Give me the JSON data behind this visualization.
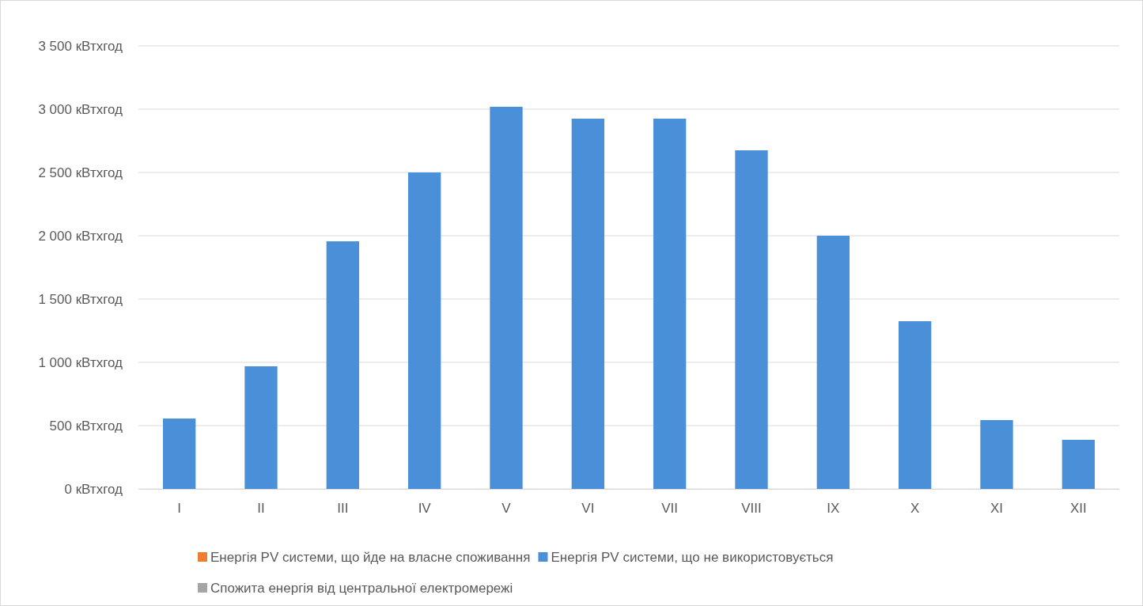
{
  "chart_data": {
    "type": "bar",
    "categories": [
      "I",
      "II",
      "III",
      "IV",
      "V",
      "VI",
      "VII",
      "VIII",
      "IX",
      "X",
      "XI",
      "XII"
    ],
    "series": [
      {
        "name": "Енергія PV системи, що йде на власне споживання",
        "color": "#ed7d31",
        "values": [
          0,
          0,
          0,
          0,
          0,
          0,
          0,
          0,
          0,
          0,
          0,
          0
        ]
      },
      {
        "name": "Енергія PV системи, що не використовується",
        "color": "#4a90d9",
        "values": [
          556,
          969,
          1956,
          2500,
          3019,
          2925,
          2925,
          2675,
          2000,
          1325,
          544,
          388
        ]
      },
      {
        "name": "Спожита енергія від центральної електромережі",
        "color": "#a5a5a5",
        "values": [
          0,
          0,
          0,
          0,
          0,
          0,
          0,
          0,
          0,
          0,
          0,
          0
        ]
      }
    ],
    "ylim": [
      0,
      3500
    ],
    "yticks": [
      {
        "value": 0,
        "label": "0 кВтхгод"
      },
      {
        "value": 500,
        "label": "500 кВтхгод"
      },
      {
        "value": 1000,
        "label": "1 000 кВтхгод"
      },
      {
        "value": 1500,
        "label": "1 500 кВтхгод"
      },
      {
        "value": 2000,
        "label": "2 000 кВтхгод"
      },
      {
        "value": 2500,
        "label": "2 500 кВтхгод"
      },
      {
        "value": 3000,
        "label": "3 000 кВтхгод"
      },
      {
        "value": 3500,
        "label": "3 500 кВтхгод"
      }
    ],
    "grid": "y",
    "legend": "bottom"
  }
}
